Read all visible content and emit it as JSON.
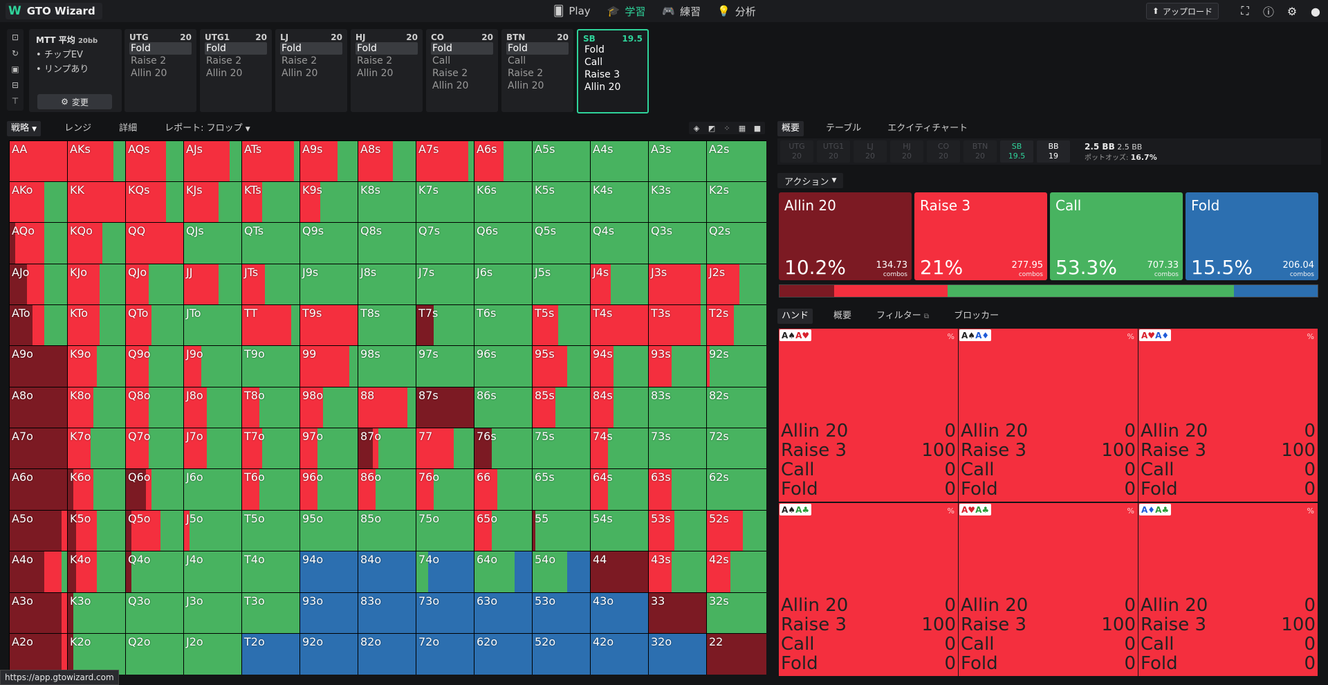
{
  "app": {
    "title": "GTO Wizard",
    "url": "https://app.gtowizard.com"
  },
  "nav": [
    {
      "label": "Play",
      "icon": "cards-icon"
    },
    {
      "label": "学習",
      "icon": "graduation-cap-icon"
    },
    {
      "label": "練習",
      "icon": "gamepad-icon"
    },
    {
      "label": "分析",
      "icon": "lightbulb-icon"
    }
  ],
  "header": {
    "upload_label": "アップロード"
  },
  "game": {
    "title": "MTT 平均",
    "stack": "20bb",
    "bullets": [
      "チップEV",
      "リンプあり"
    ],
    "change_label": "変更"
  },
  "positions": [
    {
      "name": "UTG",
      "stack": "20",
      "actions": [
        "Fold",
        "Raise 2",
        "Allin 20"
      ],
      "selected": "Fold"
    },
    {
      "name": "UTG1",
      "stack": "20",
      "actions": [
        "Fold",
        "Raise 2",
        "Allin 20"
      ],
      "selected": "Fold"
    },
    {
      "name": "LJ",
      "stack": "20",
      "actions": [
        "Fold",
        "Raise 2",
        "Allin 20"
      ],
      "selected": "Fold"
    },
    {
      "name": "HJ",
      "stack": "20",
      "actions": [
        "Fold",
        "Raise 2",
        "Allin 20"
      ],
      "selected": "Fold"
    },
    {
      "name": "CO",
      "stack": "20",
      "actions": [
        "Fold",
        "Call",
        "Raise 2",
        "Allin 20"
      ],
      "selected": "Fold"
    },
    {
      "name": "BTN",
      "stack": "20",
      "actions": [
        "Fold",
        "Call",
        "Raise 2",
        "Allin 20"
      ],
      "selected": "Fold"
    },
    {
      "name": "SB",
      "stack": "19.5",
      "actions": [
        "Fold",
        "Call",
        "Raise 3",
        "Allin 20"
      ],
      "selected": ""
    }
  ],
  "strategy_tabs": [
    "戦略",
    "レンジ",
    "詳細",
    "レポート: フロップ"
  ],
  "right_tabs": [
    "概要",
    "テーブル",
    "エクイティチャート"
  ],
  "seats": [
    {
      "n": "UTG",
      "s": "20"
    },
    {
      "n": "UTG1",
      "s": "20"
    },
    {
      "n": "LJ",
      "s": "20"
    },
    {
      "n": "HJ",
      "s": "20"
    },
    {
      "n": "CO",
      "s": "20"
    },
    {
      "n": "BTN",
      "s": "20"
    },
    {
      "n": "SB",
      "s": "19.5"
    },
    {
      "n": "BB",
      "s": "19"
    }
  ],
  "pot": {
    "pot1": "2.5 BB",
    "pot2": "2.5 BB",
    "odds_label": "ポットオッズ:",
    "odds": "16.7%"
  },
  "action_dropdown": "アクション",
  "actions": [
    {
      "name": "Allin 20",
      "pct": "10.2%",
      "combos": "134.73",
      "color": "#7c1a23"
    },
    {
      "name": "Raise 3",
      "pct": "21%",
      "combos": "277.95",
      "color": "#f42f3e"
    },
    {
      "name": "Call",
      "pct": "53.3%",
      "combos": "707.33",
      "color": "#48b360"
    },
    {
      "name": "Fold",
      "pct": "15.5%",
      "combos": "206.04",
      "color": "#2c6fb0"
    }
  ],
  "combos_label": "combos",
  "hand_tabs": [
    "ハンド",
    "概要",
    "フィルター",
    "ブロッカー"
  ],
  "hands": [
    {
      "cards": [
        [
          "A",
          "♠",
          "#222"
        ],
        [
          "A",
          "♥",
          "#d8202c"
        ]
      ],
      "rows": [
        [
          "Allin 20",
          "0"
        ],
        [
          "Raise 3",
          "100"
        ],
        [
          "Call",
          "0"
        ],
        [
          "Fold",
          "0"
        ]
      ]
    },
    {
      "cards": [
        [
          "A",
          "♠",
          "#222"
        ],
        [
          "A",
          "♦",
          "#1f5bd8"
        ]
      ],
      "rows": [
        [
          "Allin 20",
          "0"
        ],
        [
          "Raise 3",
          "100"
        ],
        [
          "Call",
          "0"
        ],
        [
          "Fold",
          "0"
        ]
      ]
    },
    {
      "cards": [
        [
          "A",
          "♥",
          "#d8202c"
        ],
        [
          "A",
          "♦",
          "#1f5bd8"
        ]
      ],
      "rows": [
        [
          "Allin 20",
          "0"
        ],
        [
          "Raise 3",
          "100"
        ],
        [
          "Call",
          "0"
        ],
        [
          "Fold",
          "0"
        ]
      ]
    },
    {
      "cards": [
        [
          "A",
          "♠",
          "#222"
        ],
        [
          "A",
          "♣",
          "#2a9d3a"
        ]
      ],
      "rows": [
        [
          "Allin 20",
          "0"
        ],
        [
          "Raise 3",
          "100"
        ],
        [
          "Call",
          "0"
        ],
        [
          "Fold",
          "0"
        ]
      ]
    },
    {
      "cards": [
        [
          "A",
          "♥",
          "#d8202c"
        ],
        [
          "A",
          "♣",
          "#2a9d3a"
        ]
      ],
      "rows": [
        [
          "Allin 20",
          "0"
        ],
        [
          "Raise 3",
          "100"
        ],
        [
          "Call",
          "0"
        ],
        [
          "Fold",
          "0"
        ]
      ]
    },
    {
      "cards": [
        [
          "A",
          "♦",
          "#1f5bd8"
        ],
        [
          "A",
          "♣",
          "#2a9d3a"
        ]
      ],
      "rows": [
        [
          "Allin 20",
          "0"
        ],
        [
          "Raise 3",
          "100"
        ],
        [
          "Call",
          "0"
        ],
        [
          "Fold",
          "0"
        ]
      ]
    }
  ],
  "pct_symbol": "%",
  "grid_labels": [
    [
      "AA",
      "AKs",
      "AQs",
      "AJs",
      "ATs",
      "A9s",
      "A8s",
      "A7s",
      "A6s",
      "A5s",
      "A4s",
      "A3s",
      "A2s"
    ],
    [
      "AKo",
      "KK",
      "KQs",
      "KJs",
      "KTs",
      "K9s",
      "K8s",
      "K7s",
      "K6s",
      "K5s",
      "K4s",
      "K3s",
      "K2s"
    ],
    [
      "AQo",
      "KQo",
      "QQ",
      "QJs",
      "QTs",
      "Q9s",
      "Q8s",
      "Q7s",
      "Q6s",
      "Q5s",
      "Q4s",
      "Q3s",
      "Q2s"
    ],
    [
      "AJo",
      "KJo",
      "QJo",
      "JJ",
      "JTs",
      "J9s",
      "J8s",
      "J7s",
      "J6s",
      "J5s",
      "J4s",
      "J3s",
      "J2s"
    ],
    [
      "ATo",
      "KTo",
      "QTo",
      "JTo",
      "TT",
      "T9s",
      "T8s",
      "T7s",
      "T6s",
      "T5s",
      "T4s",
      "T3s",
      "T2s"
    ],
    [
      "A9o",
      "K9o",
      "Q9o",
      "J9o",
      "T9o",
      "99",
      "98s",
      "97s",
      "96s",
      "95s",
      "94s",
      "93s",
      "92s"
    ],
    [
      "A8o",
      "K8o",
      "Q8o",
      "J8o",
      "T8o",
      "98o",
      "88",
      "87s",
      "86s",
      "85s",
      "84s",
      "83s",
      "82s"
    ],
    [
      "A7o",
      "K7o",
      "Q7o",
      "J7o",
      "T7o",
      "97o",
      "87o",
      "77",
      "76s",
      "75s",
      "74s",
      "73s",
      "72s"
    ],
    [
      "A6o",
      "K6o",
      "Q6o",
      "J6o",
      "T6o",
      "96o",
      "86o",
      "76o",
      "66",
      "65s",
      "64s",
      "63s",
      "62s"
    ],
    [
      "A5o",
      "K5o",
      "Q5o",
      "J5o",
      "T5o",
      "95o",
      "85o",
      "75o",
      "65o",
      "55",
      "54s",
      "53s",
      "52s"
    ],
    [
      "A4o",
      "K4o",
      "Q4o",
      "J4o",
      "T4o",
      "94o",
      "84o",
      "74o",
      "64o",
      "54o",
      "44",
      "43s",
      "42s"
    ],
    [
      "A3o",
      "K3o",
      "Q3o",
      "J3o",
      "T3o",
      "93o",
      "83o",
      "73o",
      "63o",
      "53o",
      "43o",
      "33",
      "32s"
    ],
    [
      "A2o",
      "K2o",
      "Q2o",
      "J2o",
      "T2o",
      "92o",
      "82o",
      "72o",
      "62o",
      "52o",
      "42o",
      "32o",
      "22"
    ]
  ],
  "grid_freq": [
    [
      [
        0,
        1,
        0,
        0
      ],
      [
        0,
        0.8,
        0.2,
        0
      ],
      [
        0,
        0.7,
        0.3,
        0
      ],
      [
        0,
        0.8,
        0.2,
        0
      ],
      [
        0,
        0.9,
        0.1,
        0
      ],
      [
        0,
        0.65,
        0.35,
        0
      ],
      [
        0,
        0.6,
        0.4,
        0
      ],
      [
        0,
        0.9,
        0.1,
        0
      ],
      [
        0,
        0.5,
        0.5,
        0
      ],
      [
        0,
        0,
        1,
        0
      ],
      [
        0,
        0,
        1,
        0
      ],
      [
        0,
        0,
        1,
        0
      ],
      [
        0,
        0,
        1,
        0
      ]
    ],
    [
      [
        0,
        0.6,
        0.4,
        0
      ],
      [
        0,
        1,
        0,
        0
      ],
      [
        0,
        0.7,
        0.3,
        0
      ],
      [
        0,
        0.6,
        0.4,
        0
      ],
      [
        0,
        0.35,
        0.65,
        0
      ],
      [
        0,
        0.35,
        0.65,
        0
      ],
      [
        0,
        0,
        1,
        0
      ],
      [
        0,
        0,
        1,
        0
      ],
      [
        0,
        0,
        1,
        0
      ],
      [
        0,
        0,
        1,
        0
      ],
      [
        0,
        0,
        1,
        0
      ],
      [
        0,
        0,
        1,
        0
      ],
      [
        0,
        0,
        1,
        0
      ]
    ],
    [
      [
        0.1,
        0.5,
        0.4,
        0
      ],
      [
        0,
        0.6,
        0.4,
        0
      ],
      [
        0,
        1,
        0,
        0
      ],
      [
        0,
        0,
        1,
        0
      ],
      [
        0,
        0,
        1,
        0
      ],
      [
        0,
        0,
        1,
        0
      ],
      [
        0,
        0,
        1,
        0
      ],
      [
        0,
        0,
        1,
        0
      ],
      [
        0,
        0,
        1,
        0
      ],
      [
        0,
        0,
        1,
        0
      ],
      [
        0,
        0,
        1,
        0
      ],
      [
        0,
        0,
        1,
        0
      ],
      [
        0,
        0,
        1,
        0
      ]
    ],
    [
      [
        0.3,
        0.3,
        0.4,
        0
      ],
      [
        0,
        0.55,
        0.45,
        0
      ],
      [
        0,
        0.4,
        0.6,
        0
      ],
      [
        0,
        0.6,
        0.4,
        0
      ],
      [
        0,
        0.4,
        0.6,
        0
      ],
      [
        0,
        0,
        1,
        0
      ],
      [
        0,
        0,
        1,
        0
      ],
      [
        0,
        0,
        1,
        0
      ],
      [
        0,
        0,
        1,
        0
      ],
      [
        0,
        0,
        1,
        0
      ],
      [
        0,
        0.35,
        0.65,
        0
      ],
      [
        0,
        0.9,
        0.1,
        0
      ],
      [
        0,
        0.55,
        0.45,
        0
      ]
    ],
    [
      [
        0.4,
        0.2,
        0.4,
        0
      ],
      [
        0,
        0.55,
        0.45,
        0
      ],
      [
        0,
        0.45,
        0.55,
        0
      ],
      [
        0,
        0,
        1,
        0
      ],
      [
        0,
        0.85,
        0.15,
        0
      ],
      [
        0,
        1,
        0,
        0
      ],
      [
        0,
        0,
        1,
        0
      ],
      [
        0.3,
        0,
        0.7,
        0
      ],
      [
        0,
        0,
        1,
        0
      ],
      [
        0,
        0.45,
        0.55,
        0
      ],
      [
        0,
        1,
        0,
        0
      ],
      [
        0,
        0.9,
        0.1,
        0
      ],
      [
        0,
        0.45,
        0.55,
        0
      ]
    ],
    [
      [
        1,
        0,
        0,
        0
      ],
      [
        0,
        0.5,
        0.5,
        0
      ],
      [
        0,
        0.4,
        0.6,
        0
      ],
      [
        0,
        0.3,
        0.7,
        0
      ],
      [
        0,
        0,
        1,
        0
      ],
      [
        0,
        0.85,
        0.15,
        0
      ],
      [
        0,
        0,
        1,
        0
      ],
      [
        0,
        0,
        1,
        0
      ],
      [
        0,
        0,
        1,
        0
      ],
      [
        0,
        0.6,
        0.4,
        0
      ],
      [
        0,
        0.4,
        0.6,
        0
      ],
      [
        0,
        0.4,
        0.6,
        0
      ],
      [
        0,
        0.05,
        0.95,
        0
      ]
    ],
    [
      [
        1,
        0,
        0,
        0
      ],
      [
        0,
        0.45,
        0.55,
        0
      ],
      [
        0,
        0.4,
        0.6,
        0
      ],
      [
        0,
        0.4,
        0.6,
        0
      ],
      [
        0,
        0.3,
        0.7,
        0
      ],
      [
        0,
        0.4,
        0.6,
        0
      ],
      [
        0,
        0.85,
        0.15,
        0
      ],
      [
        1,
        0,
        0,
        0
      ],
      [
        0,
        0,
        1,
        0
      ],
      [
        0,
        0.4,
        0.6,
        0
      ],
      [
        0,
        0.4,
        0.6,
        0
      ],
      [
        0,
        0,
        1,
        0
      ],
      [
        0,
        0,
        1,
        0
      ]
    ],
    [
      [
        1,
        0,
        0,
        0
      ],
      [
        0,
        0.4,
        0.6,
        0
      ],
      [
        0,
        0.4,
        0.6,
        0
      ],
      [
        0,
        0.4,
        0.6,
        0
      ],
      [
        0,
        0.35,
        0.65,
        0
      ],
      [
        0,
        0.3,
        0.7,
        0
      ],
      [
        0.25,
        0.1,
        0.65,
        0
      ],
      [
        0,
        0.65,
        0.35,
        0
      ],
      [
        0.3,
        0,
        0.7,
        0
      ],
      [
        0,
        0,
        1,
        0
      ],
      [
        0,
        0.3,
        0.7,
        0
      ],
      [
        0,
        0,
        1,
        0
      ],
      [
        0,
        0,
        1,
        0
      ]
    ],
    [
      [
        1,
        0,
        0,
        0
      ],
      [
        0.1,
        0.35,
        0.55,
        0
      ],
      [
        0.35,
        0.1,
        0.55,
        0
      ],
      [
        0,
        0,
        1,
        0
      ],
      [
        0,
        0.3,
        0.7,
        0
      ],
      [
        0,
        0.3,
        0.7,
        0
      ],
      [
        0,
        0.3,
        0.7,
        0
      ],
      [
        0,
        0.3,
        0.7,
        0
      ],
      [
        0,
        0.4,
        0.6,
        0
      ],
      [
        0,
        0,
        1,
        0
      ],
      [
        0,
        0.3,
        0.7,
        0
      ],
      [
        0,
        0.4,
        0.6,
        0
      ],
      [
        0,
        0,
        1,
        0
      ]
    ],
    [
      [
        0.9,
        0.1,
        0,
        0
      ],
      [
        0.15,
        0.35,
        0.5,
        0
      ],
      [
        0.1,
        0.5,
        0.4,
        0
      ],
      [
        0,
        0.1,
        0.9,
        0
      ],
      [
        0,
        0,
        1,
        0
      ],
      [
        0,
        0,
        1,
        0
      ],
      [
        0,
        0,
        1,
        0
      ],
      [
        0,
        0,
        1,
        0
      ],
      [
        0,
        0.3,
        0.7,
        0
      ],
      [
        0.05,
        0,
        0.95,
        0
      ],
      [
        0,
        0,
        1,
        0
      ],
      [
        0,
        0.45,
        0.55,
        0
      ],
      [
        0,
        0.6,
        0.4,
        0
      ]
    ],
    [
      [
        0.6,
        0.3,
        0.1,
        0
      ],
      [
        0.15,
        0.35,
        0.5,
        0
      ],
      [
        0.1,
        0,
        0.9,
        0
      ],
      [
        0,
        0,
        1,
        0
      ],
      [
        0,
        0,
        1,
        0
      ],
      [
        0,
        0,
        0,
        1
      ],
      [
        0,
        0,
        0,
        1
      ],
      [
        0,
        0,
        0.2,
        0.8
      ],
      [
        0,
        0,
        0.7,
        0.3
      ],
      [
        0,
        0,
        0.6,
        0.4
      ],
      [
        1,
        0,
        0,
        0
      ],
      [
        0,
        0.4,
        0.6,
        0
      ],
      [
        0,
        0.4,
        0.6,
        0
      ]
    ],
    [
      [
        0.9,
        0.1,
        0,
        0
      ],
      [
        0.1,
        0,
        0.9,
        0
      ],
      [
        0,
        0,
        1,
        0
      ],
      [
        0,
        0,
        1,
        0
      ],
      [
        0,
        0,
        1,
        0
      ],
      [
        0,
        0,
        0,
        1
      ],
      [
        0,
        0,
        0,
        1
      ],
      [
        0,
        0,
        0,
        1
      ],
      [
        0,
        0,
        0,
        1
      ],
      [
        0,
        0,
        0,
        1
      ],
      [
        0,
        0,
        0,
        1
      ],
      [
        1,
        0,
        0,
        0
      ],
      [
        0,
        0,
        1,
        0
      ]
    ],
    [
      [
        0.9,
        0.1,
        0,
        0
      ],
      [
        0.1,
        0,
        0.9,
        0
      ],
      [
        0,
        0,
        1,
        0
      ],
      [
        0,
        0,
        1,
        0
      ],
      [
        0,
        0,
        0,
        1
      ],
      [
        0,
        0,
        0,
        1
      ],
      [
        0,
        0,
        0,
        1
      ],
      [
        0,
        0,
        0,
        1
      ],
      [
        0,
        0,
        0,
        1
      ],
      [
        0,
        0,
        0,
        1
      ],
      [
        0,
        0,
        0,
        1
      ],
      [
        0,
        0,
        0,
        1
      ],
      [
        1,
        0,
        0,
        0
      ]
    ]
  ],
  "colors": {
    "allin": "#7c1a23",
    "raise": "#f42f3e",
    "call": "#48b360",
    "fold": "#2c6fb0",
    "accent": "#2fd39a"
  }
}
